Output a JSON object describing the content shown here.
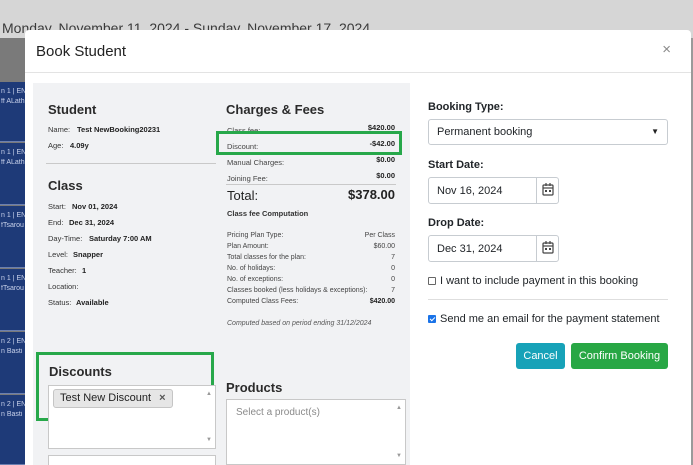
{
  "background": {
    "week_range": "Monday, November 11, 2024 - Sunday, November 17, 2024",
    "strips": [
      {
        "line1": "n 1 | EN",
        "line2": "ff ALath"
      },
      {
        "line1": "n 1 | EN",
        "line2": "ff ALath"
      },
      {
        "line1": "n 1 | EN",
        "line2": "fTsarou"
      },
      {
        "line1": "n 1 | EN",
        "line2": "fTsarou"
      },
      {
        "line1": "n 2 | EN",
        "line2": "n Basti"
      },
      {
        "line1": "n 2 | EN",
        "line2": "n Basti"
      }
    ]
  },
  "modal": {
    "title": "Book Student",
    "close_glyph": "×"
  },
  "student": {
    "heading": "Student",
    "name_label": "Name:",
    "name": "Test NewBooking20231",
    "age_label": "Age:",
    "age": "4.09y"
  },
  "class_info": {
    "heading": "Class",
    "start_label": "Start:",
    "start": "Nov 01, 2024",
    "end_label": "End:",
    "end": "Dec 31, 2024",
    "daytime_label": "Day-Time:",
    "daytime": "Saturday 7:00 AM",
    "level_label": "Level:",
    "level": "Snapper",
    "teacher_label": "Teacher:",
    "teacher": "1",
    "location_label": "Location:",
    "location": "",
    "status_label": "Status:",
    "status": "Available"
  },
  "charges": {
    "heading": "Charges & Fees",
    "class_fee_label": "Class fee:",
    "class_fee": "$420.00",
    "discount_label": "Discount:",
    "discount": "-$42.00",
    "manual_label": "Manual Charges:",
    "manual": "$0.00",
    "joining_label": "Joining Fee:",
    "joining": "$0.00",
    "total_label": "Total:",
    "total": "$378.00",
    "computation_heading": "Class fee Computation",
    "computation": [
      {
        "label": "Pricing Plan Type:",
        "value": "Per Class"
      },
      {
        "label": "Plan Amount:",
        "value": "$60.00"
      },
      {
        "label": "Total classes for the plan:",
        "value": "7"
      },
      {
        "label": "No. of holidays:",
        "value": "0"
      },
      {
        "label": "No. of exceptions:",
        "value": "0"
      },
      {
        "label": "Classes booked (less holidays & exceptions):",
        "value": "7"
      },
      {
        "label": "Computed Class Fees:",
        "value": "$420.00"
      }
    ],
    "note": "Computed based on period ending 31/12/2024"
  },
  "discounts": {
    "heading": "Discounts",
    "selected_chip": "Test New Discount",
    "chip_remove_glyph": "×"
  },
  "products": {
    "heading": "Products",
    "placeholder": "Select a product(s)"
  },
  "booking": {
    "type_label": "Booking Type:",
    "type_value": "Permanent booking",
    "start_label": "Start Date:",
    "start_value": "Nov 16, 2024",
    "drop_label": "Drop Date:",
    "drop_value": "Dec 31, 2024",
    "include_payment_label": "I want to include payment in this booking",
    "include_payment_checked": false,
    "send_email_label": "Send me an email for the payment statement",
    "send_email_checked": true,
    "cancel_label": "Cancel",
    "confirm_label": "Confirm Booking"
  },
  "colors": {
    "highlight": "#27a84a",
    "cancel_button": "#17a2b8",
    "confirm_button": "#28a745",
    "panel_background": "#f1f2f4",
    "calendar_strip": "#1e3a78"
  }
}
